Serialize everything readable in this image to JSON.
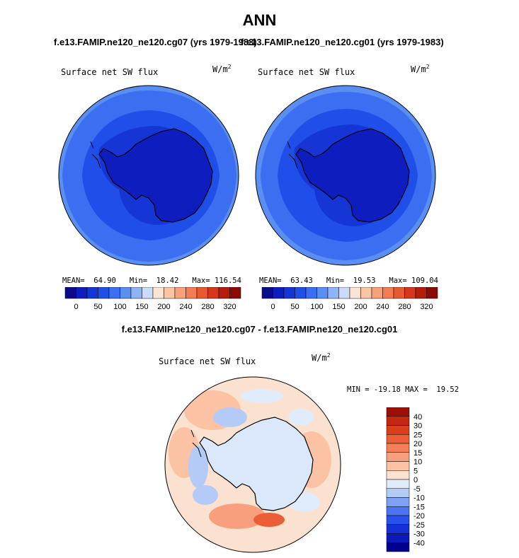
{
  "page": {
    "title": "ANN",
    "diff_title": "f.e13.FAMIP.ne120_ne120.cg07 - f.e13.FAMIP.ne120_ne120.cg01"
  },
  "panels": [
    {
      "case_title": "f.e13.FAMIP.ne120_ne120.cg07 (yrs 1979-1983)",
      "variable": "Surface net SW flux",
      "units": "W/m",
      "units_sup": "2",
      "mean_label": "MEAN=",
      "mean": "64.90",
      "min_label": "Min=",
      "min": "18.42",
      "max_label": "Max=",
      "max": "116.54"
    },
    {
      "case_title": "f.e13.FAMIP.ne120_ne120.cg01 (yrs 1979-1983)",
      "variable": "Surface net SW flux",
      "units": "W/m",
      "units_sup": "2",
      "mean_label": "MEAN=",
      "mean": "63.43",
      "min_label": "Min=",
      "min": "19.53",
      "max_label": "Max=",
      "max": "109.04"
    }
  ],
  "diff_panel": {
    "variable": "Surface net SW flux",
    "units": "W/m",
    "units_sup": "2",
    "stats": "MIN = -19.18 MAX =  19.52"
  },
  "colors": {
    "abs_scale": [
      "#0a0a8c",
      "#0e1ebe",
      "#1535d4",
      "#1f4fe8",
      "#3b6ef0",
      "#5a8ef3",
      "#8fb3f7",
      "#c9dcfb",
      "#fde3d2",
      "#fbc4a4",
      "#f8a07a",
      "#f47c55",
      "#ea5830",
      "#d6371a",
      "#b51c0a",
      "#8a0c05"
    ],
    "diff_scale": [
      "#00008c",
      "#0b1ab8",
      "#1430d8",
      "#2850ea",
      "#4a74f0",
      "#7ea0f5",
      "#b4cbf8",
      "#e0ecfc",
      "#fbe1d0",
      "#fbc2a4",
      "#f8a07e",
      "#f4805a",
      "#ea5f38",
      "#dc3e1c",
      "#c42810",
      "#9e1006"
    ],
    "land": "#dbe8fc"
  },
  "chart_data": [
    {
      "type": "heatmap",
      "title": "Surface net SW flux",
      "units": "W/m2",
      "projection": "south-polar",
      "mean": 64.9,
      "min": 18.42,
      "max": 116.54,
      "colorbar_ticks": [
        0,
        50,
        100,
        150,
        200,
        240,
        280,
        320
      ]
    },
    {
      "type": "heatmap",
      "title": "Surface net SW flux",
      "units": "W/m2",
      "projection": "south-polar",
      "mean": 63.43,
      "min": 19.53,
      "max": 109.04,
      "colorbar_ticks": [
        0,
        50,
        100,
        150,
        200,
        240,
        280,
        320
      ]
    },
    {
      "type": "heatmap",
      "title": "Surface net SW flux",
      "units": "W/m2",
      "projection": "south-polar",
      "min": -19.18,
      "max": 19.52,
      "colorbar_ticks": [
        40,
        30,
        25,
        20,
        15,
        10,
        5,
        0,
        -5,
        -10,
        -15,
        -20,
        -25,
        -30,
        -40
      ]
    }
  ]
}
